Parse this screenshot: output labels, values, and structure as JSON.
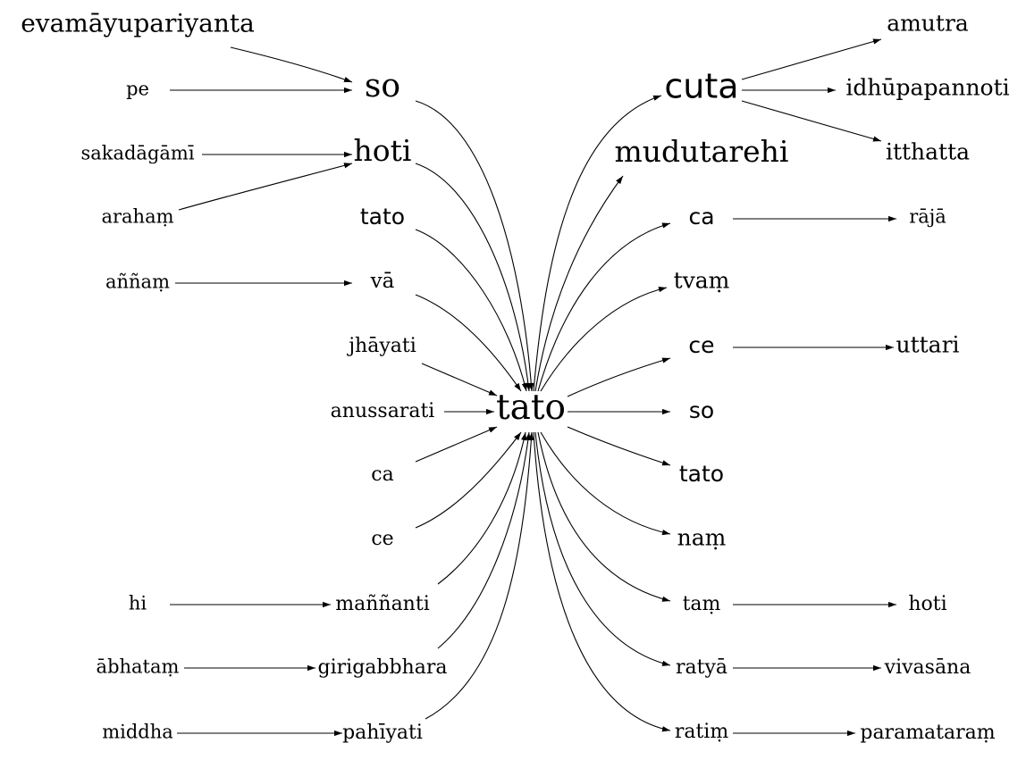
{
  "nodes": {
    "center": "tato",
    "left_in": {
      "so": "so",
      "hoti": "hoti",
      "tato": "tato",
      "va": "vā",
      "jhayati": "jhāyati",
      "anussarati": "anussarati",
      "ca": "ca",
      "ce": "ce",
      "mannanti": "maññanti",
      "girigabbhara": "girigabbhara",
      "pahiyati": "pahīyati"
    },
    "left_far": {
      "evamayupariyanta": "evamāyupariyanta",
      "pe": "pe",
      "sakadagami": "sakadāgāmī",
      "araham": "arahaṃ",
      "annam": "aññaṃ",
      "hi": "hi",
      "abhatam": "ābhataṃ",
      "middha": "middha"
    },
    "right_in": {
      "cuta": "cuta",
      "mudutarehi": "mudutarehi",
      "ca": "ca",
      "tvam": "tvaṃ",
      "ce": "ce",
      "so": "so",
      "tato": "tato",
      "nam": "naṃ",
      "tam": "taṃ",
      "ratya": "ratyā",
      "ratim": "ratiṃ"
    },
    "right_far": {
      "amutra": "amutra",
      "idhupapannoti": "idhūpapannoti",
      "itthatta": "itthatta",
      "raja": "rājā",
      "uttari": "uttari",
      "hoti": "hoti",
      "vivasana": "vivasāna",
      "paramataram": "paramataraṃ"
    }
  }
}
